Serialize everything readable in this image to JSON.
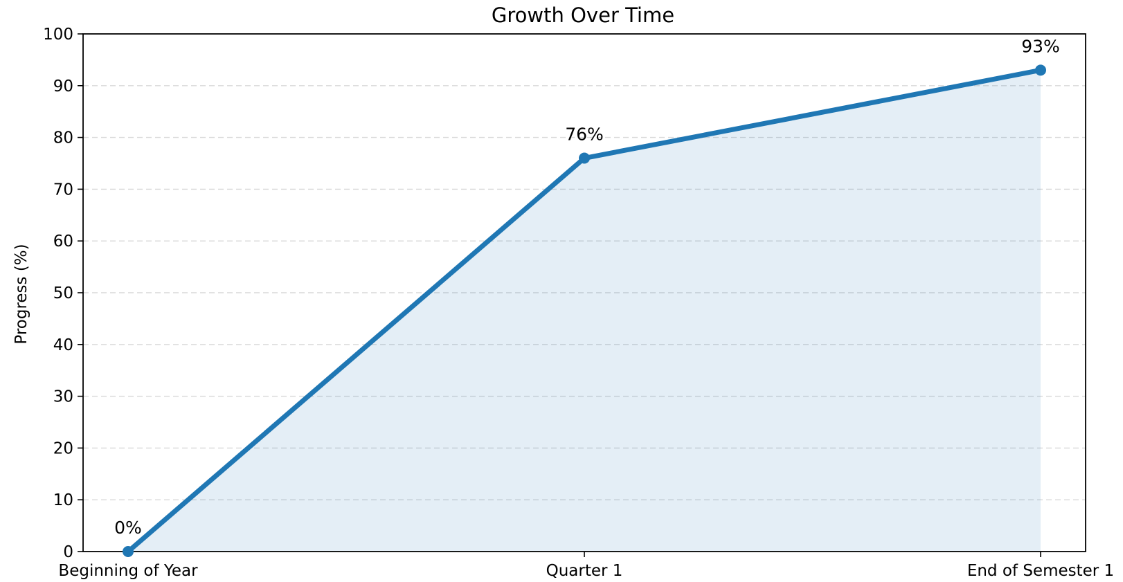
{
  "chart_data": {
    "type": "area",
    "title": "Growth Over Time",
    "xlabel": "",
    "ylabel": "Progress (%)",
    "categories": [
      "Beginning of Year",
      "Quarter 1",
      "End of Semester 1"
    ],
    "values": [
      0,
      76,
      93
    ],
    "data_labels": [
      "0%",
      "76%",
      "93%"
    ],
    "ylim": [
      0,
      100
    ],
    "yticks": [
      0,
      10,
      20,
      30,
      40,
      50,
      60,
      70,
      80,
      90,
      100
    ],
    "ytick_labels": [
      "0",
      "10",
      "20",
      "30",
      "40",
      "50",
      "60",
      "70",
      "80",
      "90",
      "100"
    ],
    "grid": "horizontal-dashed",
    "legend": "none",
    "markers": true,
    "fill_under_line": true
  },
  "colors": {
    "line": "#1f77b4",
    "fill": "#1f77b4",
    "fill_opacity": 0.12,
    "axis": "#000000",
    "grid": "#cccccc"
  }
}
